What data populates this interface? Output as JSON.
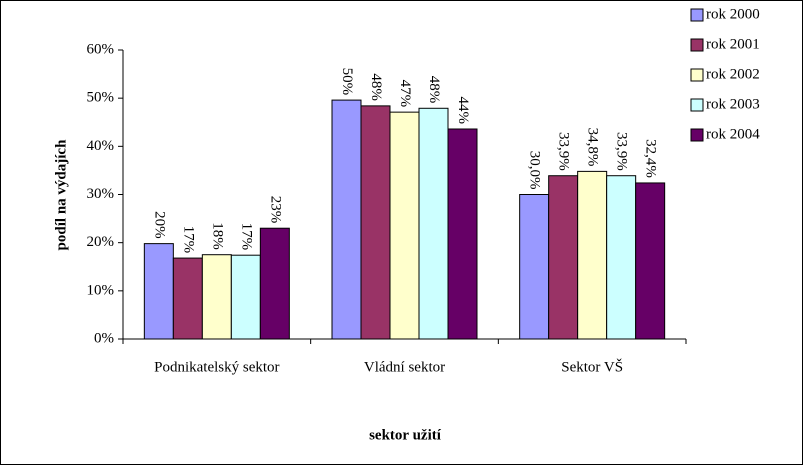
{
  "chart_data": {
    "type": "bar",
    "y_label": "podíl na výdajích",
    "x_label": "sektor užití",
    "categories": [
      "Podnikatelský sektor",
      "Vládní sektor",
      "Sektor VŠ"
    ],
    "series": [
      {
        "name": "rok 2000",
        "color": "#9999ff",
        "values": [
          19.8,
          49.6,
          30.0
        ],
        "value_labels": [
          "20%",
          "50%",
          "30,0%"
        ]
      },
      {
        "name": "rok 2001",
        "color": "#993366",
        "values": [
          16.8,
          48.4,
          33.9
        ],
        "value_labels": [
          "17%",
          "48%",
          "33,9%"
        ]
      },
      {
        "name": "rok 2002",
        "color": "#ffffcc",
        "values": [
          17.5,
          47.1,
          34.8
        ],
        "value_labels": [
          "18%",
          "47%",
          "34,8%"
        ]
      },
      {
        "name": "rok 2003",
        "color": "#ccffff",
        "values": [
          17.4,
          47.9,
          33.9
        ],
        "value_labels": [
          "17%",
          "48%",
          "33,9%"
        ]
      },
      {
        "name": "rok 2004",
        "color": "#660066",
        "values": [
          23.0,
          43.6,
          32.4
        ],
        "value_labels": [
          "23%",
          "44%",
          "32,4%"
        ]
      }
    ],
    "ylim": [
      0,
      60
    ],
    "yticks": [
      {
        "value": 0,
        "label": "0%"
      },
      {
        "value": 10,
        "label": "10%"
      },
      {
        "value": 20,
        "label": "20%"
      },
      {
        "value": 30,
        "label": "30%"
      },
      {
        "value": 40,
        "label": "40%"
      },
      {
        "value": 50,
        "label": "50%"
      },
      {
        "value": 60,
        "label": "60%"
      }
    ],
    "grid": false,
    "legend": "top-right"
  }
}
